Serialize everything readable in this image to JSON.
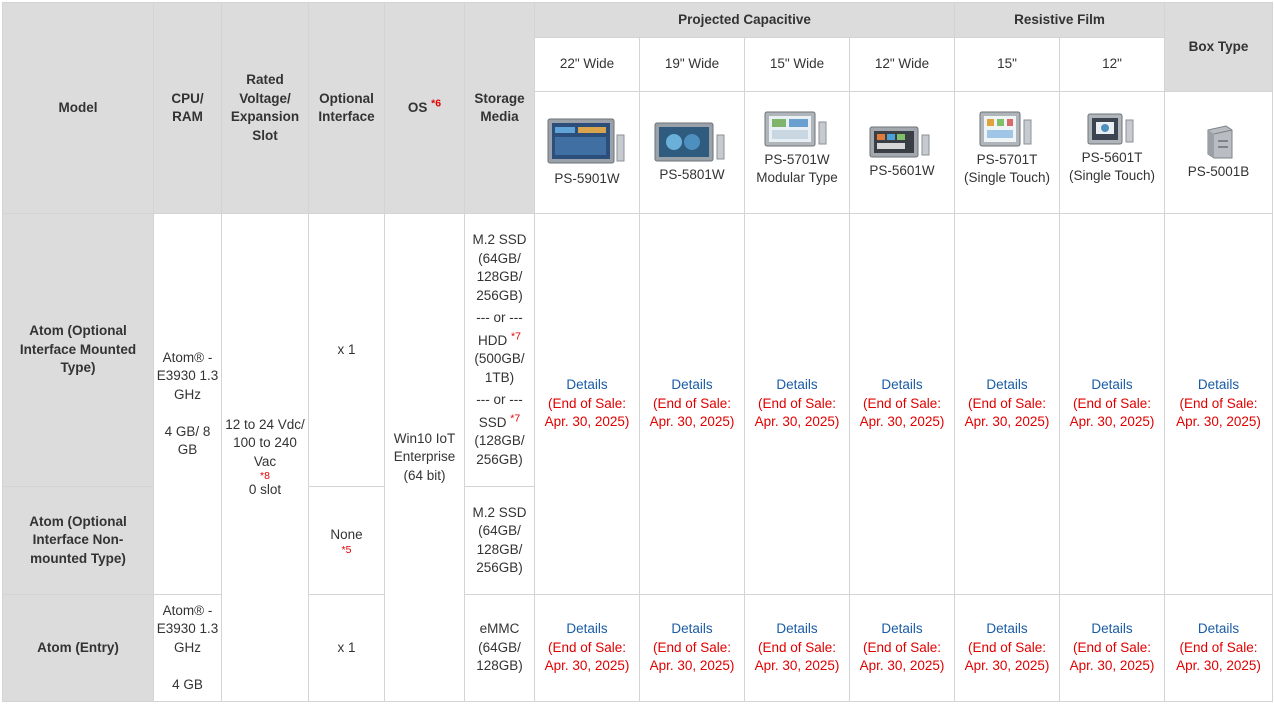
{
  "headers": {
    "model": "Model",
    "cpu": "CPU/ RAM",
    "voltage": "Rated Voltage/ Expansion Slot",
    "optional": "Optional Interface",
    "os": "OS",
    "os_note": "*6",
    "storage": "Storage Media",
    "group_pcap": "Projected Capacitive",
    "group_resistive": "Resistive Film",
    "box": "Box Type"
  },
  "sizes": [
    "22\" Wide",
    "19\" Wide",
    "15\" Wide",
    "12\" Wide",
    "15\"",
    "12\""
  ],
  "products": [
    {
      "name": "PS-5901W",
      "icon": "panel-pc-wide-icon"
    },
    {
      "name": "PS-5801W",
      "icon": "panel-pc-wide-icon"
    },
    {
      "name": "PS-5701W Modular Type",
      "icon": "panel-pc-modular-icon"
    },
    {
      "name": "PS-5601W",
      "icon": "panel-pc-wide-icon"
    },
    {
      "name": "PS-5701T (Single Touch)",
      "icon": "panel-pc-standard-icon"
    },
    {
      "name": "PS-5601T (Single Touch)",
      "icon": "panel-pc-standard-icon"
    },
    {
      "name": "PS-5001B",
      "icon": "box-pc-icon"
    }
  ],
  "rows": {
    "mounted": {
      "model": "Atom (Optional Interface Mounted Type)",
      "cpu": "Atom® - E3930 1.3 GHz",
      "ram": "4 GB/ 8 GB",
      "optional": "x 1",
      "storage_ssd": "M.2 SSD (64GB/ 128GB/ 256GB)",
      "or1": "--- or ---",
      "hdd": "HDD",
      "hdd_note": "*7",
      "hdd_size": "(500GB/ 1TB)",
      "or2": "--- or ---",
      "ssd": "SSD",
      "ssd_note": "*7",
      "ssd_size": "(128GB/ 256GB)"
    },
    "nonmounted": {
      "model": "Atom (Optional Interface Non-mounted Type)",
      "optional": "None",
      "optional_note": "*5",
      "storage": "M.2 SSD (64GB/ 128GB/ 256GB)"
    },
    "entry": {
      "model": "Atom (Entry)",
      "cpu": "Atom® - E3930 1.3 GHz",
      "ram": "4 GB",
      "optional": "x 1",
      "storage": "eMMC (64GB/ 128GB)"
    },
    "shared": {
      "voltage": "12 to 24 Vdc/ 100 to 240 Vac",
      "voltage_note": "*8",
      "slot": "0 slot",
      "os": "Win10 IoT Enterprise (64 bit)"
    }
  },
  "cell": {
    "details": "Details",
    "eos1": "(End of Sale:",
    "eos2": "Apr. 30, 2025)"
  },
  "colors": {
    "header_bg": "#dcdcdc",
    "link": "#1a5ca6",
    "note_red": "#e00000",
    "border": "#d4d4d4"
  }
}
